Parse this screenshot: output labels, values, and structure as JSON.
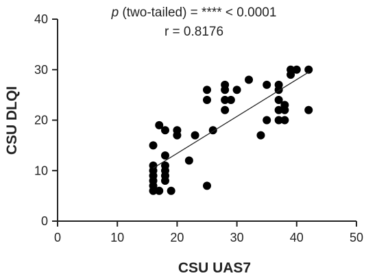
{
  "chart_data": {
    "type": "scatter",
    "xlabel": "CSU UAS7",
    "ylabel": "CSU DLQI",
    "xlim": [
      0,
      50
    ],
    "ylim": [
      0,
      40
    ],
    "xticks": [
      0,
      10,
      20,
      30,
      40,
      50
    ],
    "yticks": [
      0,
      10,
      20,
      30,
      40
    ],
    "grid": false,
    "annotations": {
      "p_symbol": "p",
      "p_text": " (two-tailed) = **** < 0.0001",
      "r_text": "r = 0.8176"
    },
    "trendline": {
      "x": [
        16,
        42
      ],
      "y": [
        10.5,
        29.5
      ]
    },
    "points": [
      {
        "x": 16,
        "y": 6
      },
      {
        "x": 16,
        "y": 7
      },
      {
        "x": 16,
        "y": 8
      },
      {
        "x": 16,
        "y": 9
      },
      {
        "x": 16,
        "y": 10
      },
      {
        "x": 16,
        "y": 11
      },
      {
        "x": 16,
        "y": 15
      },
      {
        "x": 17,
        "y": 6
      },
      {
        "x": 17,
        "y": 19
      },
      {
        "x": 18,
        "y": 8
      },
      {
        "x": 18,
        "y": 9
      },
      {
        "x": 18,
        "y": 10
      },
      {
        "x": 18,
        "y": 11
      },
      {
        "x": 18,
        "y": 13
      },
      {
        "x": 18,
        "y": 18
      },
      {
        "x": 19,
        "y": 6
      },
      {
        "x": 20,
        "y": 17
      },
      {
        "x": 20,
        "y": 18
      },
      {
        "x": 22,
        "y": 12
      },
      {
        "x": 23,
        "y": 17
      },
      {
        "x": 25,
        "y": 7
      },
      {
        "x": 25,
        "y": 24
      },
      {
        "x": 25,
        "y": 26
      },
      {
        "x": 26,
        "y": 18
      },
      {
        "x": 28,
        "y": 22
      },
      {
        "x": 28,
        "y": 24
      },
      {
        "x": 28,
        "y": 26
      },
      {
        "x": 28,
        "y": 27
      },
      {
        "x": 29,
        "y": 24
      },
      {
        "x": 30,
        "y": 26
      },
      {
        "x": 32,
        "y": 28
      },
      {
        "x": 34,
        "y": 17
      },
      {
        "x": 35,
        "y": 20
      },
      {
        "x": 35,
        "y": 27
      },
      {
        "x": 37,
        "y": 20
      },
      {
        "x": 37,
        "y": 22
      },
      {
        "x": 37,
        "y": 24
      },
      {
        "x": 37,
        "y": 26
      },
      {
        "x": 37,
        "y": 27
      },
      {
        "x": 38,
        "y": 20
      },
      {
        "x": 38,
        "y": 22
      },
      {
        "x": 38,
        "y": 23
      },
      {
        "x": 39,
        "y": 29
      },
      {
        "x": 39,
        "y": 30
      },
      {
        "x": 40,
        "y": 30
      },
      {
        "x": 42,
        "y": 22
      },
      {
        "x": 42,
        "y": 30
      }
    ]
  }
}
